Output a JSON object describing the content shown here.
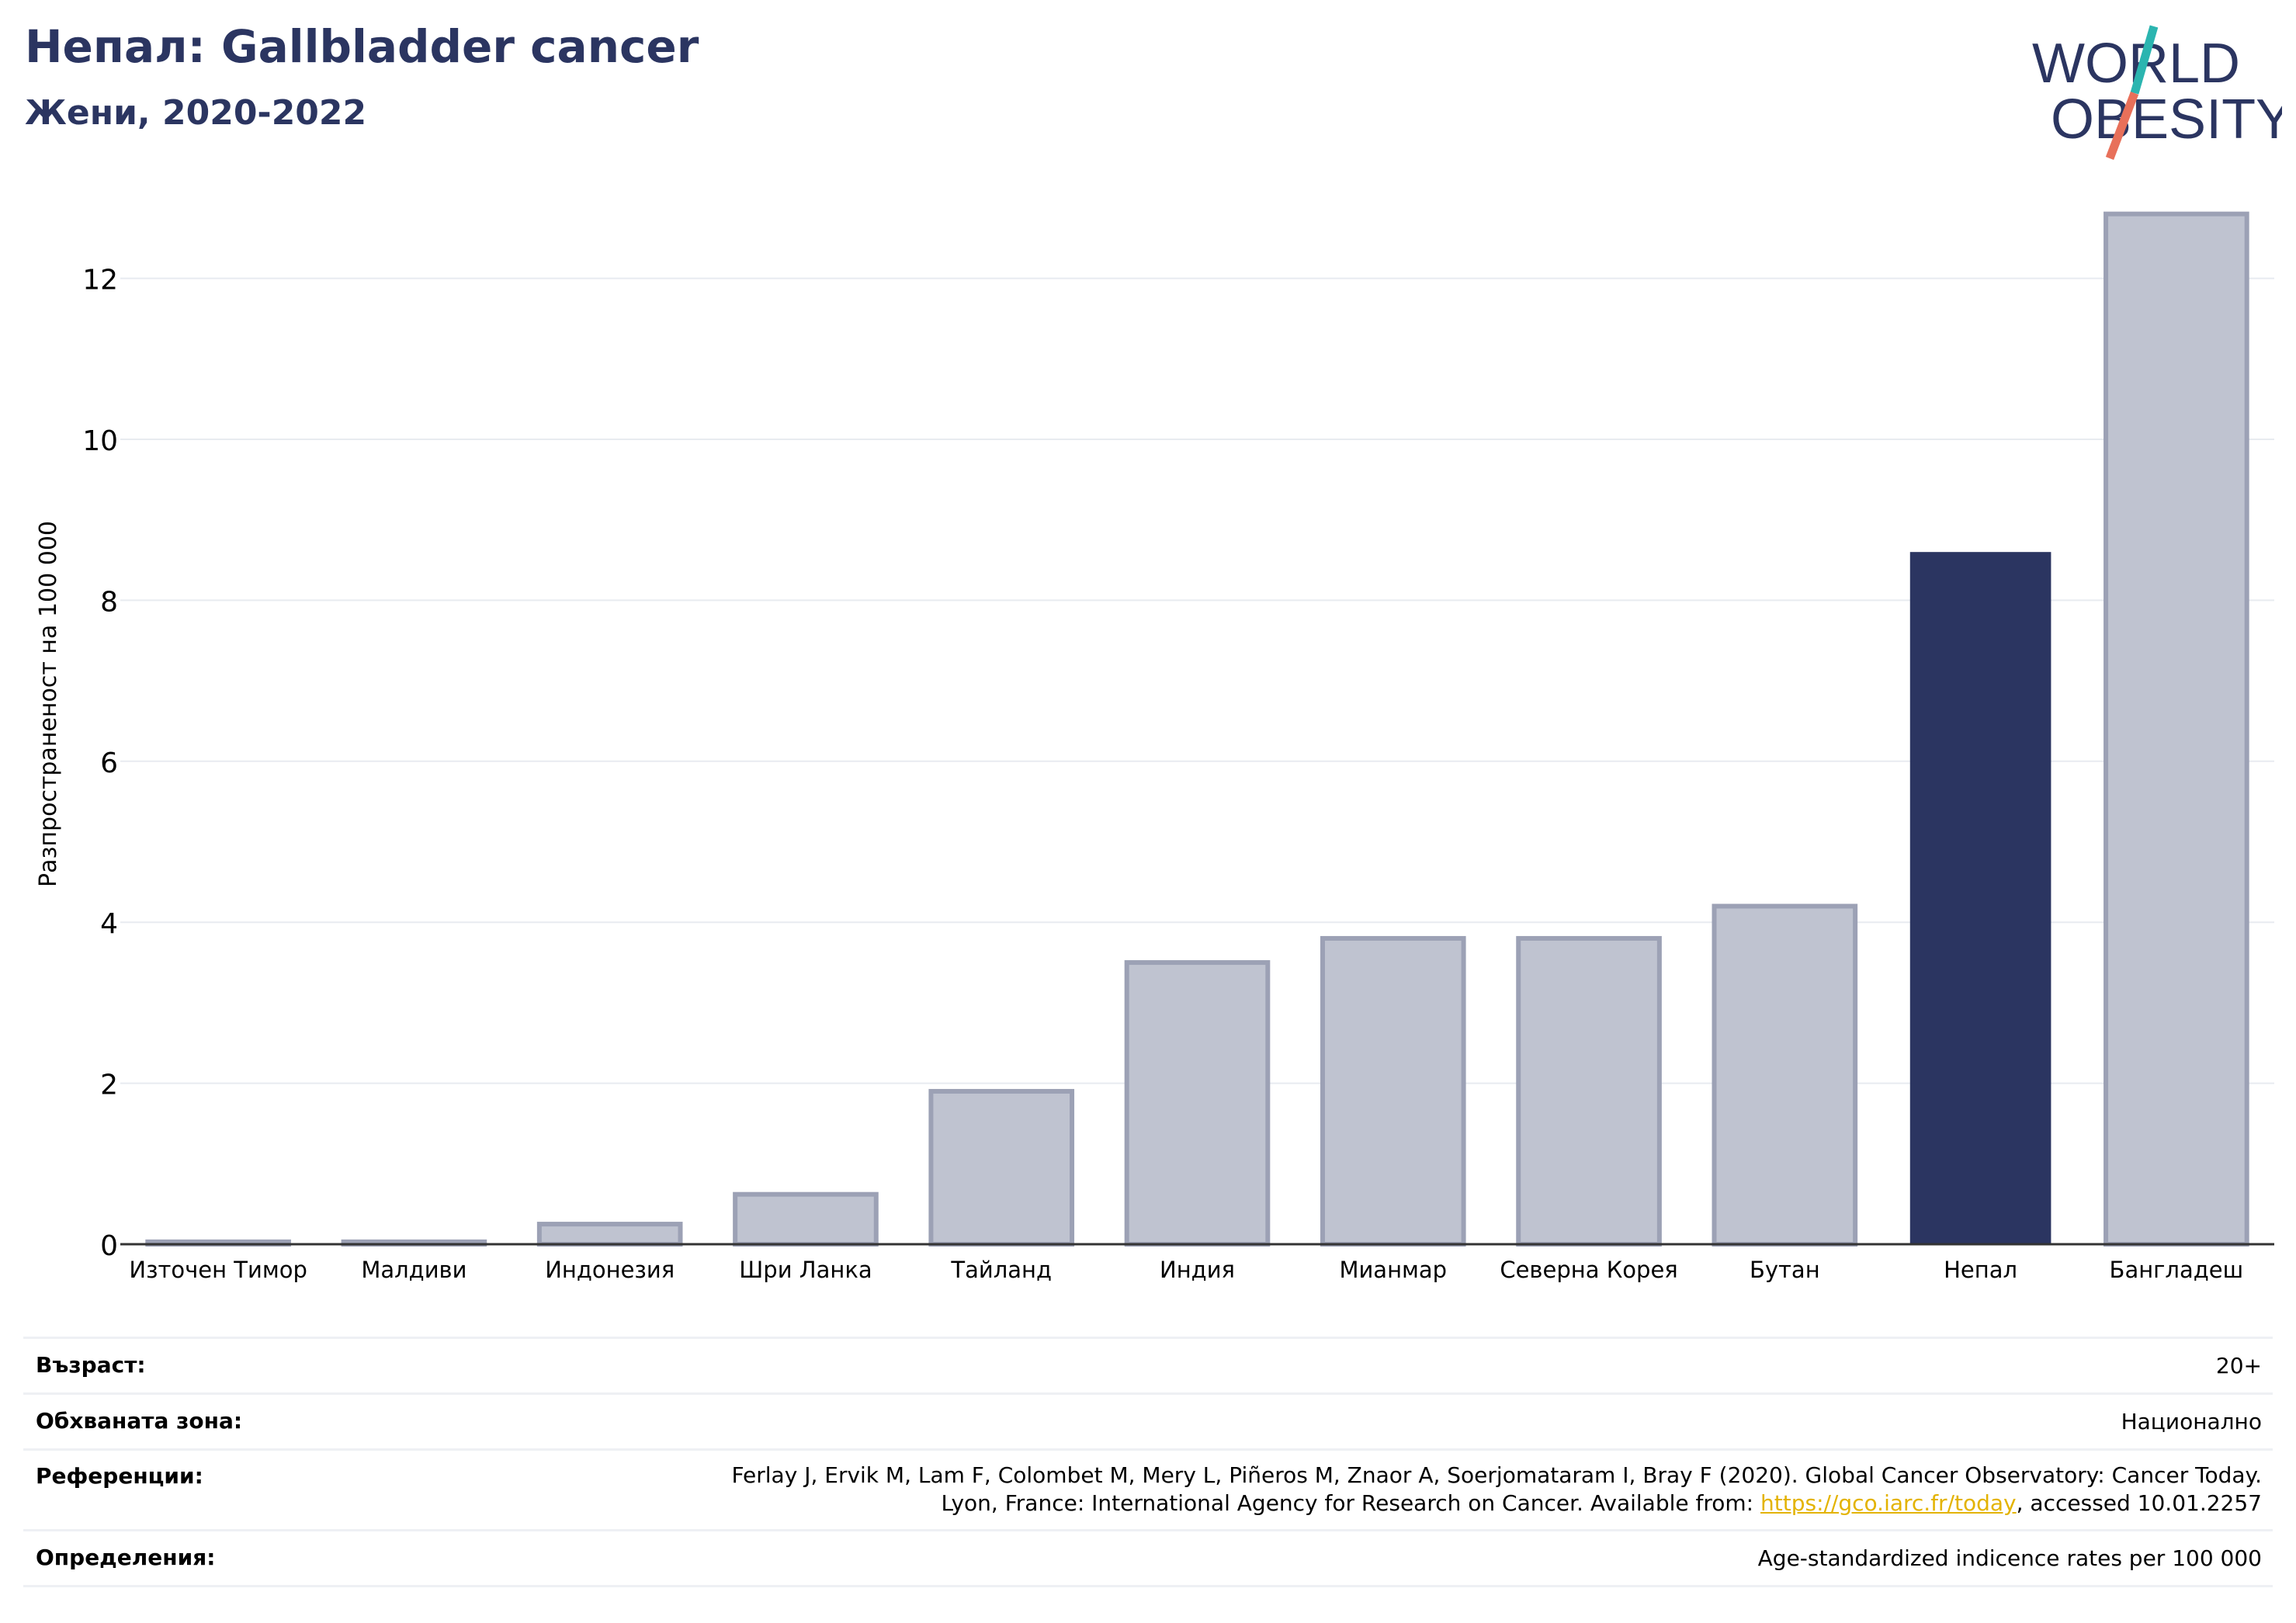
{
  "header": {
    "title": "Непал: Gallbladder cancer",
    "subtitle": "Жени, 2020-2022"
  },
  "logo": {
    "line1": "WORLD",
    "line2": "OBESITY",
    "colors": {
      "text": "#2b3561",
      "teal": "#2bb5b0",
      "coral": "#e8705a"
    }
  },
  "chart_data": {
    "type": "bar",
    "title": "Непал: Gallbladder cancer",
    "subtitle": "Жени, 2020-2022",
    "ylabel": "Разпространеност  на 100 000",
    "xlabel": "",
    "ylim": [
      0,
      13
    ],
    "yticks": [
      0,
      2,
      4,
      6,
      8,
      10,
      12
    ],
    "grid": true,
    "categories": [
      "Източен Тимор",
      "Малдиви",
      "Индонезия",
      "Шри Ланка",
      "Тайланд",
      "Индия",
      "Мианмар",
      "Северна Корея",
      "Бутан",
      "Непал",
      "Бангладеш"
    ],
    "values": [
      0.03,
      0.03,
      0.25,
      0.62,
      1.9,
      3.5,
      3.8,
      3.8,
      4.2,
      8.6,
      12.8
    ],
    "highlight": "Непал",
    "colors": {
      "highlight": "#2b3561",
      "other_fill": "#bfc3d0",
      "other_stroke": "#9ca1b5"
    }
  },
  "info": {
    "age_label": "Възраст:",
    "age_value": "20+",
    "zone_label": "Обхваната зона:",
    "zone_value": "Национално",
    "ref_label": "Референции:",
    "ref_line1": "Ferlay J, Ervik M, Lam F, Colombet M, Mery L, Piñeros M, Znaor A, Soerjomataram I, Bray F (2020). Global Cancer Observatory: Cancer Today.",
    "ref_line2_pre": "Lyon, France: International Agency for Research on Cancer. Available from: ",
    "ref_link": "https://gco.iarc.fr/today",
    "ref_line2_post": ", accessed 10.01.2257",
    "def_label": "Определения:",
    "def_value": "Age-standardized indicence rates per 100 000"
  }
}
